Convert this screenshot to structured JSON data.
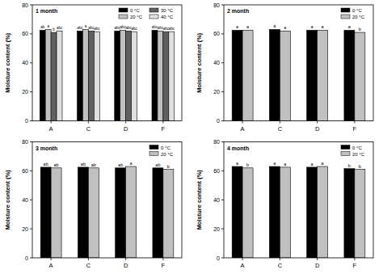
{
  "chart_data": [
    {
      "type": "bar",
      "title": "1 month",
      "y_label": "Moisture content (%)",
      "categories": [
        "A",
        "C",
        "D",
        "F"
      ],
      "ylim": [
        0,
        80
      ],
      "yticks": [
        0,
        20,
        40,
        60,
        80
      ],
      "legend": "upper right",
      "series": [
        {
          "name": "0 °C",
          "color": "#000000",
          "values": [
            62.5,
            62,
            62,
            62.5
          ],
          "letters": [
            "ab",
            "abc",
            "abc",
            "abc"
          ]
        },
        {
          "name": "20 °C",
          "color": "#c0c0c0",
          "values": [
            63,
            63,
            62.5,
            62
          ],
          "letters": [
            "a",
            "a",
            "abc",
            "abc"
          ]
        },
        {
          "name": "30 °C",
          "color": "#606060",
          "values": [
            61,
            62,
            62,
            61.5
          ],
          "letters": [
            "b",
            "abc",
            "abc",
            "abc"
          ]
        },
        {
          "name": "40 °C",
          "color": "#e0e0e0",
          "values": [
            62,
            61.5,
            61.5,
            61.5
          ],
          "letters": [
            "abc",
            "abc",
            "abc",
            "abc"
          ]
        }
      ]
    },
    {
      "type": "bar",
      "title": "2 month",
      "y_label": "Moisture content (%)",
      "categories": [
        "A",
        "C",
        "D",
        "F"
      ],
      "ylim": [
        0,
        80
      ],
      "yticks": [
        0,
        20,
        40,
        60,
        80
      ],
      "legend": "upper right",
      "series": [
        {
          "name": "0 °C",
          "color": "#000000",
          "values": [
            62.5,
            63,
            62.5,
            62.5
          ],
          "letters": [
            "a",
            "a",
            "a",
            "a"
          ]
        },
        {
          "name": "20 °C",
          "color": "#c0c0c0",
          "values": [
            62.5,
            62,
            62.5,
            61
          ],
          "letters": [
            "a",
            "a",
            "a",
            "b"
          ]
        }
      ]
    },
    {
      "type": "bar",
      "title": "3 month",
      "y_label": "Moisture content (%)",
      "categories": [
        "A",
        "C",
        "D",
        "F"
      ],
      "ylim": [
        0,
        80
      ],
      "yticks": [
        0,
        20,
        40,
        60,
        80
      ],
      "legend": "upper right",
      "series": [
        {
          "name": "0 °C",
          "color": "#000000",
          "values": [
            62.5,
            62.5,
            62,
            62
          ],
          "letters": [
            "ab",
            "ab",
            "ab",
            "ab"
          ]
        },
        {
          "name": "20 °C",
          "color": "#c0c0c0",
          "values": [
            62,
            62,
            63,
            61
          ],
          "letters": [
            "ab",
            "ab",
            "a",
            "b"
          ]
        }
      ]
    },
    {
      "type": "bar",
      "title": "4 month",
      "y_label": "Moisture content (%)",
      "categories": [
        "A",
        "C",
        "D",
        "F"
      ],
      "ylim": [
        0,
        80
      ],
      "yticks": [
        0,
        20,
        40,
        60,
        80
      ],
      "legend": "upper right",
      "series": [
        {
          "name": "0 °C",
          "color": "#000000",
          "values": [
            63,
            63,
            62.5,
            61.5
          ],
          "letters": [
            "a",
            "a",
            "a",
            "b"
          ]
        },
        {
          "name": "20 °C",
          "color": "#c0c0c0",
          "values": [
            62,
            62.5,
            63,
            61
          ],
          "letters": [
            "b",
            "a",
            "a",
            "b"
          ]
        }
      ]
    }
  ]
}
